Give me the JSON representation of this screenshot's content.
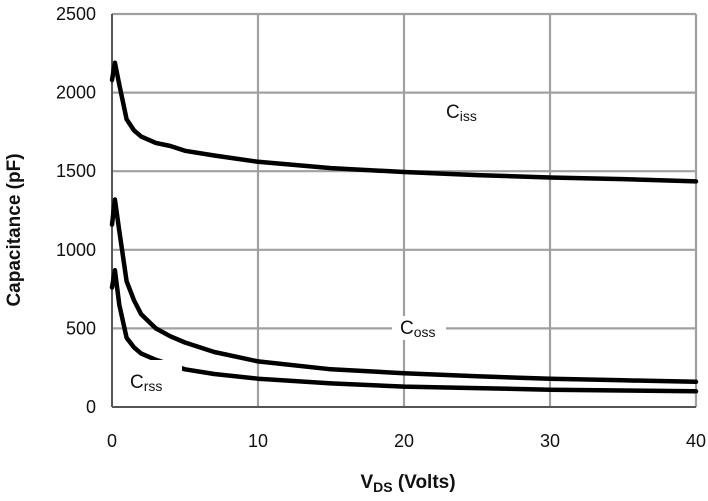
{
  "chart_data": {
    "type": "line",
    "title": "",
    "xlabel_main": "V",
    "xlabel_sub": "DS",
    "xlabel_rest": " (Volts)",
    "ylabel": "Capacitance (pF)",
    "xlim": [
      0,
      40
    ],
    "ylim": [
      0,
      2500
    ],
    "x_ticks": [
      "0",
      "10",
      "20",
      "30",
      "40"
    ],
    "y_ticks": [
      "0",
      "500",
      "1000",
      "1500",
      "2000",
      "2500"
    ],
    "grid": true,
    "series": [
      {
        "name_main": "C",
        "name_sub": "iss",
        "x": [
          0,
          0.2,
          0.5,
          1,
          1.5,
          2,
          3,
          4,
          5,
          7,
          10,
          15,
          20,
          25,
          30,
          35,
          40
        ],
        "values": [
          2080,
          2190,
          2050,
          1830,
          1760,
          1720,
          1680,
          1660,
          1630,
          1600,
          1560,
          1520,
          1495,
          1475,
          1460,
          1450,
          1435
        ]
      },
      {
        "name_main": "C",
        "name_sub": "oss",
        "x": [
          0,
          0.2,
          0.5,
          1,
          1.5,
          2,
          3,
          4,
          5,
          7,
          10,
          15,
          20,
          25,
          30,
          35,
          40
        ],
        "values": [
          1160,
          1320,
          1120,
          800,
          680,
          590,
          500,
          450,
          410,
          350,
          290,
          240,
          215,
          195,
          180,
          170,
          160
        ]
      },
      {
        "name_main": "C",
        "name_sub": "rss",
        "x": [
          0,
          0.2,
          0.5,
          1,
          1.5,
          2,
          3,
          4,
          5,
          7,
          10,
          15,
          20,
          25,
          30,
          35,
          40
        ],
        "values": [
          760,
          870,
          650,
          440,
          380,
          340,
          300,
          270,
          240,
          210,
          180,
          150,
          130,
          120,
          110,
          105,
          100
        ]
      }
    ]
  }
}
